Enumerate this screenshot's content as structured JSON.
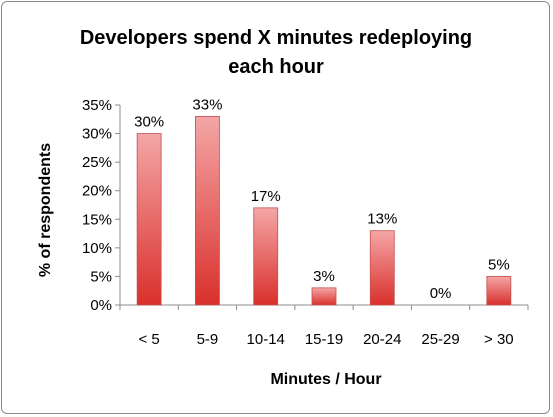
{
  "chart_data": {
    "type": "bar",
    "title_line1": "Developers spend X minutes redeploying",
    "title_line2": "each hour",
    "xlabel": "Minutes / Hour",
    "ylabel": "% of respondents",
    "categories": [
      "< 5",
      "5-9",
      "10-14",
      "15-19",
      "20-24",
      "25-29",
      "> 30"
    ],
    "values": [
      30,
      33,
      17,
      3,
      13,
      0,
      5
    ],
    "data_labels": [
      "30%",
      "33%",
      "17%",
      "3%",
      "13%",
      "0%",
      "5%"
    ],
    "ylim": [
      0,
      35
    ],
    "yticks": [
      0,
      5,
      10,
      15,
      20,
      25,
      30,
      35
    ],
    "ytick_labels": [
      "0%",
      "5%",
      "10%",
      "15%",
      "20%",
      "25%",
      "30%",
      "35%"
    ],
    "grid": false,
    "legend": "none",
    "bar_color_top": "#f4a6a6",
    "bar_color_bottom": "#d9302c",
    "bar_edge": "#c0504d"
  }
}
